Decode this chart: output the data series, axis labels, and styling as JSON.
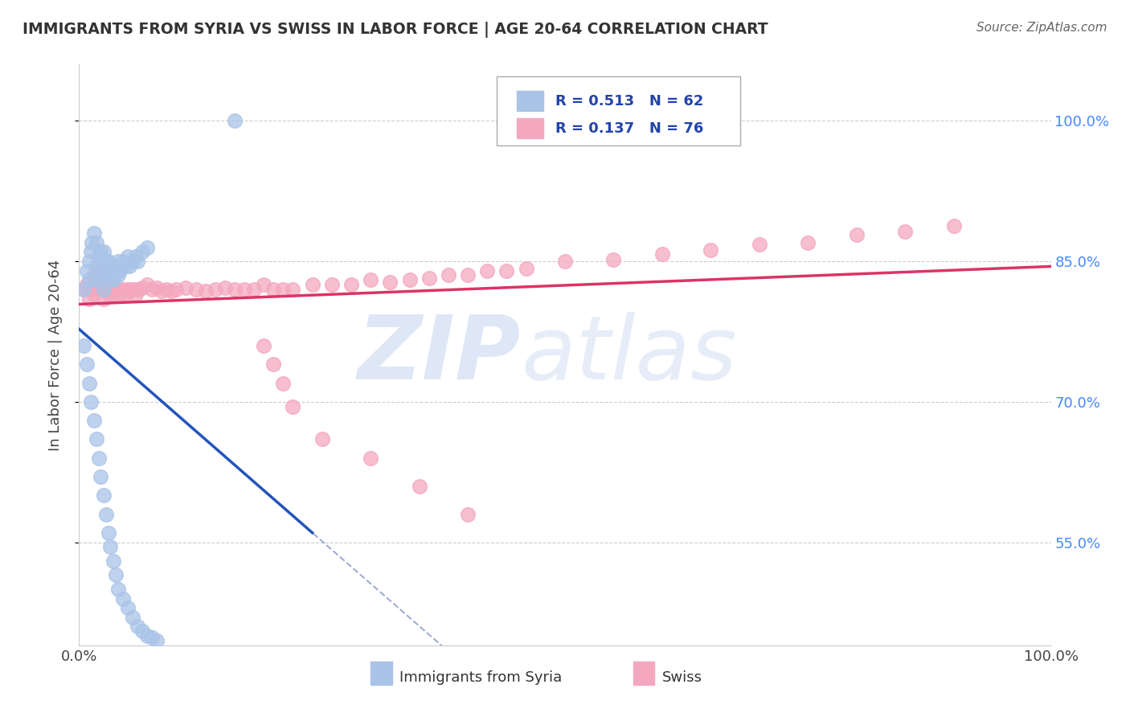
{
  "title": "IMMIGRANTS FROM SYRIA VS SWISS IN LABOR FORCE | AGE 20-64 CORRELATION CHART",
  "source": "Source: ZipAtlas.com",
  "ylabel": "In Labor Force | Age 20-64",
  "R1": "0.513",
  "N1": "62",
  "R2": "0.137",
  "N2": "76",
  "color_syria": "#aac4e8",
  "color_swiss": "#f4a8c0",
  "color_line_syria": "#2255bb",
  "color_line_swiss": "#dd3366",
  "color_dashed": "#8899cc",
  "background_color": "#ffffff",
  "legend_label1": "Immigrants from Syria",
  "legend_label2": "Swiss",
  "ytick_positions": [
    0.55,
    0.7,
    0.85,
    1.0
  ],
  "ytick_labels": [
    "55.0%",
    "70.0%",
    "85.0%",
    "100.0%"
  ],
  "xlim": [
    0.0,
    1.0
  ],
  "ylim": [
    0.44,
    1.06
  ],
  "syria_x": [
    0.005,
    0.008,
    0.01,
    0.01,
    0.012,
    0.013,
    0.015,
    0.015,
    0.018,
    0.018,
    0.02,
    0.02,
    0.022,
    0.022,
    0.025,
    0.025,
    0.025,
    0.028,
    0.028,
    0.03,
    0.03,
    0.032,
    0.032,
    0.035,
    0.035,
    0.038,
    0.04,
    0.04,
    0.042,
    0.045,
    0.048,
    0.05,
    0.052,
    0.055,
    0.058,
    0.06,
    0.065,
    0.07,
    0.005,
    0.008,
    0.01,
    0.012,
    0.015,
    0.018,
    0.02,
    0.022,
    0.025,
    0.028,
    0.03,
    0.032,
    0.035,
    0.038,
    0.04,
    0.045,
    0.05,
    0.055,
    0.06,
    0.065,
    0.07,
    0.075,
    0.08,
    0.16
  ],
  "syria_y": [
    0.82,
    0.84,
    0.85,
    0.83,
    0.86,
    0.87,
    0.88,
    0.83,
    0.87,
    0.845,
    0.855,
    0.83,
    0.86,
    0.84,
    0.86,
    0.845,
    0.82,
    0.85,
    0.835,
    0.85,
    0.84,
    0.845,
    0.83,
    0.845,
    0.83,
    0.84,
    0.85,
    0.835,
    0.84,
    0.85,
    0.845,
    0.855,
    0.845,
    0.85,
    0.855,
    0.85,
    0.86,
    0.865,
    0.76,
    0.74,
    0.72,
    0.7,
    0.68,
    0.66,
    0.64,
    0.62,
    0.6,
    0.58,
    0.56,
    0.545,
    0.53,
    0.515,
    0.5,
    0.49,
    0.48,
    0.47,
    0.46,
    0.455,
    0.45,
    0.448,
    0.445,
    1.0
  ],
  "swiss_x": [
    0.005,
    0.008,
    0.01,
    0.012,
    0.015,
    0.015,
    0.018,
    0.02,
    0.02,
    0.022,
    0.025,
    0.025,
    0.028,
    0.03,
    0.03,
    0.032,
    0.035,
    0.038,
    0.04,
    0.042,
    0.045,
    0.048,
    0.05,
    0.052,
    0.055,
    0.058,
    0.06,
    0.065,
    0.07,
    0.075,
    0.08,
    0.085,
    0.09,
    0.095,
    0.1,
    0.11,
    0.12,
    0.13,
    0.14,
    0.15,
    0.16,
    0.17,
    0.18,
    0.19,
    0.2,
    0.21,
    0.22,
    0.24,
    0.26,
    0.28,
    0.3,
    0.32,
    0.34,
    0.36,
    0.38,
    0.4,
    0.42,
    0.44,
    0.46,
    0.5,
    0.55,
    0.6,
    0.65,
    0.7,
    0.75,
    0.8,
    0.85,
    0.9,
    0.19,
    0.2,
    0.21,
    0.22,
    0.25,
    0.3,
    0.35,
    0.4
  ],
  "swiss_y": [
    0.82,
    0.825,
    0.81,
    0.82,
    0.815,
    0.835,
    0.825,
    0.82,
    0.84,
    0.83,
    0.825,
    0.81,
    0.82,
    0.825,
    0.815,
    0.82,
    0.815,
    0.82,
    0.82,
    0.815,
    0.82,
    0.815,
    0.82,
    0.818,
    0.82,
    0.815,
    0.82,
    0.822,
    0.825,
    0.82,
    0.822,
    0.818,
    0.82,
    0.818,
    0.82,
    0.822,
    0.82,
    0.818,
    0.82,
    0.822,
    0.82,
    0.82,
    0.82,
    0.825,
    0.82,
    0.82,
    0.82,
    0.825,
    0.825,
    0.825,
    0.83,
    0.828,
    0.83,
    0.832,
    0.835,
    0.835,
    0.84,
    0.84,
    0.842,
    0.85,
    0.852,
    0.858,
    0.862,
    0.868,
    0.87,
    0.878,
    0.882,
    0.888,
    0.76,
    0.74,
    0.72,
    0.695,
    0.66,
    0.64,
    0.61,
    0.58
  ]
}
